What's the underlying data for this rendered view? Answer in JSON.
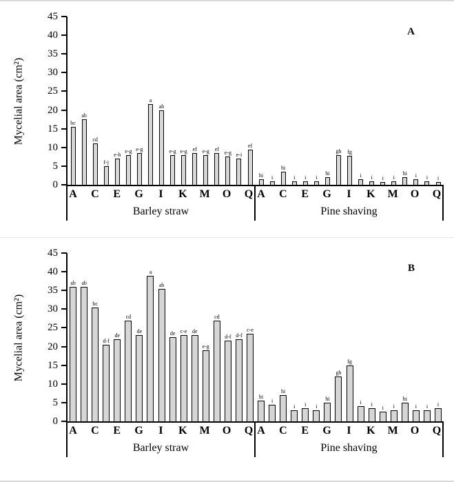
{
  "chart_data": [
    {
      "type": "bar",
      "panel_label": "A",
      "ylabel": "Mycelial area (cm²)",
      "ylim": [
        0,
        45
      ],
      "yticks": [
        0,
        5,
        10,
        15,
        20,
        25,
        30,
        35,
        40,
        45
      ],
      "grid": false,
      "legend": "none",
      "bar_color": "#d6d6d6",
      "bar_border": "#000000",
      "groups": [
        {
          "label": "Barley straw",
          "tick_labels": [
            "A",
            "C",
            "E",
            "G",
            "I",
            "K",
            "M",
            "O",
            "Q"
          ],
          "values": [
            15.5,
            17.5,
            11,
            5,
            7,
            8,
            8.5,
            21.5,
            20,
            8,
            8,
            8.5,
            8,
            8.5,
            7.5,
            7,
            9.5
          ],
          "bar_labels": [
            "bc",
            "ab",
            "cd",
            "f-j",
            "e-h",
            "e-g",
            "e-g",
            "a",
            "ab",
            "e-g",
            "e-g",
            "ef",
            "e-g",
            "ef",
            "e-g",
            "e-i",
            "ef"
          ]
        },
        {
          "label": "Pine shaving",
          "tick_labels": [
            "A",
            "C",
            "E",
            "G",
            "I",
            "K",
            "M",
            "O",
            "Q"
          ],
          "values": [
            1.5,
            1,
            3.5,
            1,
            1,
            1,
            2,
            8,
            7.8,
            1.5,
            1,
            0.8,
            1,
            2,
            1.5,
            1,
            0.8
          ],
          "bar_labels": [
            "hi",
            "i",
            "hi",
            "i",
            "i",
            "i",
            "hi",
            "gh",
            "fg",
            "i",
            "i",
            "i",
            "i",
            "hi",
            "i",
            "i",
            "i"
          ]
        }
      ]
    },
    {
      "type": "bar",
      "panel_label": "B",
      "ylabel": "Mycelial area (cm²)",
      "ylim": [
        0,
        45
      ],
      "yticks": [
        0,
        5,
        10,
        15,
        20,
        25,
        30,
        35,
        40,
        45
      ],
      "grid": false,
      "legend": "none",
      "bar_color": "#d6d6d6",
      "bar_border": "#000000",
      "groups": [
        {
          "label": "Barley straw",
          "tick_labels": [
            "A",
            "C",
            "E",
            "G",
            "I",
            "K",
            "M",
            "O",
            "Q"
          ],
          "values": [
            36,
            36,
            30.5,
            20.5,
            22,
            27,
            23,
            39,
            35.5,
            22.5,
            23,
            23,
            19,
            27,
            21.5,
            22,
            23.5
          ],
          "bar_labels": [
            "ab",
            "ab",
            "bc",
            "d-f",
            "de",
            "cd",
            "de",
            "a",
            "ab",
            "de",
            "c-e",
            "de",
            "e-g",
            "cd",
            "d-f",
            "d-f",
            "c-e"
          ]
        },
        {
          "label": "Pine shaving",
          "tick_labels": [
            "A",
            "C",
            "E",
            "G",
            "I",
            "K",
            "M",
            "O",
            "Q"
          ],
          "values": [
            5.5,
            4.5,
            7,
            3,
            3.5,
            3,
            5,
            12,
            15,
            4,
            3.5,
            2.5,
            3,
            5,
            3,
            3,
            3.5
          ],
          "bar_labels": [
            "hi",
            "i",
            "hi",
            "i",
            "i",
            "i",
            "hi",
            "gh",
            "fg",
            "i",
            "i",
            "i",
            "i",
            "hi",
            "i",
            "i",
            "i"
          ]
        }
      ]
    }
  ]
}
